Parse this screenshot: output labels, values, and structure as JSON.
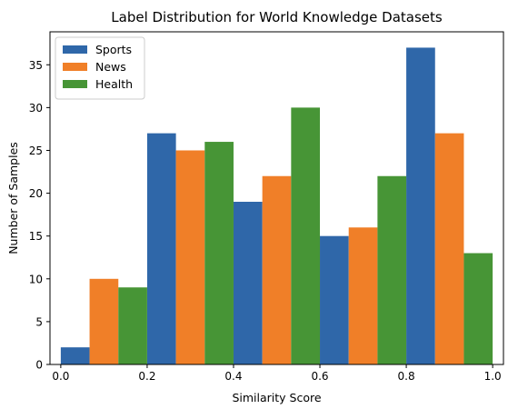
{
  "chart_data": {
    "type": "bar",
    "title": "Label Distribution for World Knowledge Datasets",
    "xlabel": "Similarity Score",
    "ylabel": "Number of Samples",
    "xlim": [
      -0.025,
      1.025
    ],
    "ylim": [
      0,
      38.85
    ],
    "xticks": [
      "0.0",
      "0.2",
      "0.4",
      "0.6",
      "0.8",
      "1.0"
    ],
    "yticks": [
      "0",
      "5",
      "10",
      "15",
      "20",
      "25",
      "30",
      "35"
    ],
    "bins": [
      [
        0.0,
        0.2
      ],
      [
        0.2,
        0.4
      ],
      [
        0.4,
        0.6
      ],
      [
        0.6,
        0.8
      ],
      [
        0.8,
        1.0
      ]
    ],
    "legend_position": "upper-left",
    "series": [
      {
        "name": "Sports",
        "color": "#2f67a9",
        "values": [
          2,
          27,
          19,
          15,
          37
        ]
      },
      {
        "name": "News",
        "color": "#f07f28",
        "values": [
          10,
          25,
          22,
          16,
          27
        ]
      },
      {
        "name": "Health",
        "color": "#479536",
        "values": [
          9,
          26,
          30,
          22,
          13
        ]
      }
    ]
  }
}
